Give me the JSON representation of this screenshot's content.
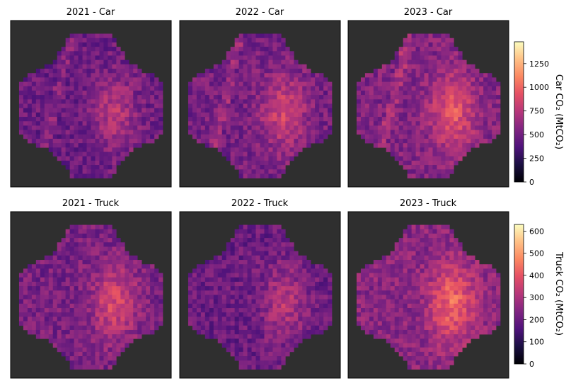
{
  "figure": {
    "colormap": "magma",
    "background_map": "#2f2f2f"
  },
  "chart_data": [
    {
      "type": "heatmap",
      "title": "2021 - Car",
      "mode": "Car",
      "year": 2021,
      "xlabel": "",
      "ylabel": "",
      "intensity_level": 0.4
    },
    {
      "type": "heatmap",
      "title": "2022 - Car",
      "mode": "Car",
      "year": 2022,
      "xlabel": "",
      "ylabel": "",
      "intensity_level": 0.48
    },
    {
      "type": "heatmap",
      "title": "2023 - Car",
      "mode": "Car",
      "year": 2023,
      "xlabel": "",
      "ylabel": "",
      "intensity_level": 0.56
    },
    {
      "type": "heatmap",
      "title": "2021 - Truck",
      "mode": "Truck",
      "year": 2021,
      "xlabel": "",
      "ylabel": "",
      "intensity_level": 0.5
    },
    {
      "type": "heatmap",
      "title": "2022 - Truck",
      "mode": "Truck",
      "year": 2022,
      "xlabel": "",
      "ylabel": "",
      "intensity_level": 0.4
    },
    {
      "type": "heatmap",
      "title": "2023 - Truck",
      "mode": "Truck",
      "year": 2023,
      "xlabel": "",
      "ylabel": "",
      "intensity_level": 0.62
    }
  ],
  "colorbars": [
    {
      "label": "Car CO₂ (MtCO₂)",
      "range": [
        0,
        1480
      ],
      "ticks": [
        0,
        250,
        500,
        750,
        1000,
        1250
      ]
    },
    {
      "label": "Truck CO₂ (MtCO₂)",
      "range": [
        0,
        630
      ],
      "ticks": [
        0,
        100,
        200,
        300,
        400,
        500,
        600
      ]
    }
  ]
}
